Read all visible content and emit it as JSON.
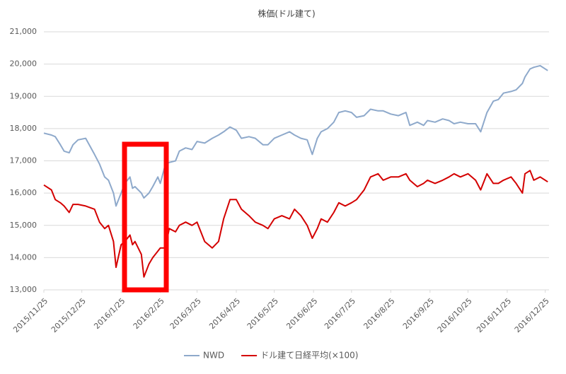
{
  "chart_data": {
    "type": "line",
    "title": "株価(ドル建て)",
    "x": [
      "2015/11/25",
      "2015/12/01",
      "2015/12/04",
      "2015/12/08",
      "2015/12/11",
      "2015/12/15",
      "2015/12/18",
      "2015/12/22",
      "2015/12/28",
      "2016/01/04",
      "2016/01/08",
      "2016/01/12",
      "2016/01/15",
      "2016/01/19",
      "2016/01/21",
      "2016/01/25",
      "2016/01/28",
      "2016/02/01",
      "2016/02/03",
      "2016/02/05",
      "2016/02/10",
      "2016/02/12",
      "2016/02/16",
      "2016/02/19",
      "2016/02/23",
      "2016/02/25",
      "2016/02/29",
      "2016/03/03",
      "2016/03/08",
      "2016/03/11",
      "2016/03/16",
      "2016/03/21",
      "2016/03/25",
      "2016/03/31",
      "2016/04/06",
      "2016/04/11",
      "2016/04/15",
      "2016/04/20",
      "2016/04/25",
      "2016/04/29",
      "2016/05/05",
      "2016/05/10",
      "2016/05/16",
      "2016/05/20",
      "2016/05/25",
      "2016/05/31",
      "2016/06/06",
      "2016/06/10",
      "2016/06/15",
      "2016/06/20",
      "2016/06/24",
      "2016/06/28",
      "2016/07/01",
      "2016/07/06",
      "2016/07/11",
      "2016/07/15",
      "2016/07/20",
      "2016/07/25",
      "2016/07/29",
      "2016/08/04",
      "2016/08/09",
      "2016/08/15",
      "2016/08/19",
      "2016/08/25",
      "2016/08/31",
      "2016/09/06",
      "2016/09/09",
      "2016/09/15",
      "2016/09/20",
      "2016/09/23",
      "2016/09/29",
      "2016/10/05",
      "2016/10/10",
      "2016/10/14",
      "2016/10/19",
      "2016/10/25",
      "2016/10/31",
      "2016/11/04",
      "2016/11/09",
      "2016/11/14",
      "2016/11/18",
      "2016/11/22",
      "2016/11/28",
      "2016/12/02",
      "2016/12/07",
      "2016/12/09",
      "2016/12/13",
      "2016/12/16",
      "2016/12/21",
      "2016/12/27"
    ],
    "series": [
      {
        "name": "NWD",
        "color": "#8ea9cb",
        "values": [
          17860,
          17800,
          17750,
          17500,
          17300,
          17250,
          17500,
          17650,
          17700,
          17200,
          16900,
          16500,
          16400,
          16000,
          15600,
          16000,
          16300,
          16500,
          16150,
          16200,
          16000,
          15850,
          16000,
          16200,
          16500,
          16300,
          16900,
          16950,
          17000,
          17300,
          17400,
          17350,
          17600,
          17550,
          17700,
          17800,
          17900,
          18050,
          17950,
          17700,
          17750,
          17700,
          17500,
          17500,
          17700,
          17800,
          17900,
          17800,
          17700,
          17650,
          17200,
          17700,
          17900,
          18000,
          18200,
          18500,
          18550,
          18500,
          18350,
          18400,
          18600,
          18550,
          18550,
          18450,
          18400,
          18500,
          18100,
          18200,
          18100,
          18250,
          18200,
          18300,
          18250,
          18150,
          18200,
          18150,
          18150,
          17900,
          18500,
          18850,
          18900,
          19100,
          19150,
          19200,
          19400,
          19600,
          19850,
          19900,
          19950,
          19800
        ]
      },
      {
        "name": "ドル建て日経平均(×100)",
        "color": "#d40000",
        "values": [
          16250,
          16100,
          15800,
          15700,
          15600,
          15400,
          15650,
          15650,
          15600,
          15500,
          15100,
          14900,
          15000,
          14500,
          13700,
          14400,
          14500,
          14700,
          14400,
          14500,
          14100,
          13400,
          13800,
          14000,
          14200,
          14300,
          14300,
          14900,
          14800,
          15000,
          15100,
          15000,
          15100,
          14500,
          14300,
          14500,
          15200,
          15800,
          15800,
          15500,
          15300,
          15100,
          15000,
          14900,
          15200,
          15300,
          15200,
          15500,
          15300,
          15000,
          14600,
          14900,
          15200,
          15100,
          15400,
          15700,
          15600,
          15700,
          15800,
          16100,
          16500,
          16600,
          16400,
          16500,
          16500,
          16600,
          16400,
          16200,
          16300,
          16400,
          16300,
          16400,
          16500,
          16600,
          16500,
          16600,
          16400,
          16100,
          16600,
          16300,
          16300,
          16400,
          16500,
          16300,
          16000,
          16600,
          16700,
          16400,
          16500,
          16350
        ]
      }
    ],
    "xlim": [
      "2015/11/25",
      "2016/12/28"
    ],
    "xticks": [
      "2015/11/25",
      "2015/12/25",
      "2016/1/25",
      "2016/2/25",
      "2016/3/25",
      "2016/4/25",
      "2016/5/25",
      "2016/6/25",
      "2016/7/25",
      "2016/8/25",
      "2016/9/25",
      "2016/10/25",
      "2016/11/25",
      "2016/12/25"
    ],
    "ylim": [
      13000,
      21000
    ],
    "yticks": [
      {
        "value": 13000,
        "label": "13,000"
      },
      {
        "value": 14000,
        "label": "14,000"
      },
      {
        "value": 15000,
        "label": "15,000"
      },
      {
        "value": 16000,
        "label": "16,000"
      },
      {
        "value": 17000,
        "label": "17,000"
      },
      {
        "value": 18000,
        "label": "18,000"
      },
      {
        "value": 19000,
        "label": "19,000"
      },
      {
        "value": 20000,
        "label": "20,000"
      },
      {
        "value": 21000,
        "label": "21,000"
      }
    ],
    "grid": true,
    "legend": "bottom"
  }
}
